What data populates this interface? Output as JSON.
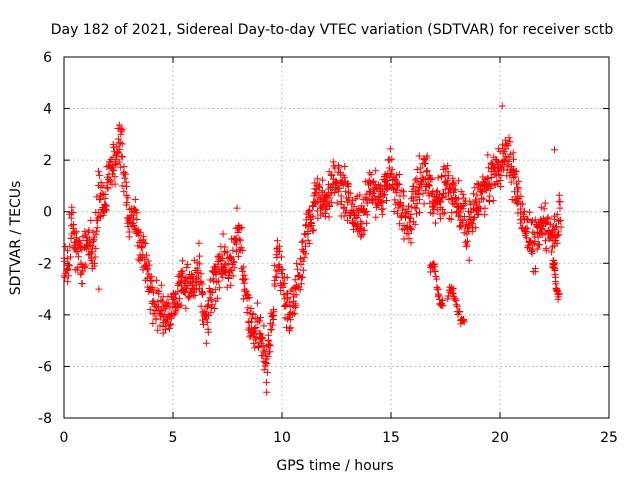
{
  "chart_data": {
    "type": "scatter",
    "title": "Day 182 of 2021, Sidereal Day-to-day VTEC variation (SDTVAR) for receiver sctb",
    "xlabel": "GPS time / hours",
    "ylabel": "SDTVAR / TECUs",
    "xlim": [
      0,
      25
    ],
    "ylim": [
      -8,
      6
    ],
    "xticks": [
      "0",
      "5",
      "10",
      "15",
      "20",
      "25"
    ],
    "yticks": [
      "-8",
      "-6",
      "-4",
      "-2",
      "0",
      "2",
      "4",
      "6"
    ],
    "grid": true,
    "marker": "plus",
    "series_color": "#ff0000",
    "trend": [
      {
        "x": 0.0,
        "y": -1.8
      },
      {
        "x": 0.2,
        "y": -2.5
      },
      {
        "x": 0.35,
        "y": -0.3
      },
      {
        "x": 0.5,
        "y": -1.2
      },
      {
        "x": 0.8,
        "y": -2.0
      },
      {
        "x": 1.1,
        "y": -1.2
      },
      {
        "x": 1.4,
        "y": -1.6
      },
      {
        "x": 1.6,
        "y": 0.8
      },
      {
        "x": 1.9,
        "y": 0.3
      },
      {
        "x": 2.1,
        "y": 1.5
      },
      {
        "x": 2.4,
        "y": 2.2
      },
      {
        "x": 2.6,
        "y": 2.8
      },
      {
        "x": 2.8,
        "y": 1.2
      },
      {
        "x": 3.0,
        "y": -0.5
      },
      {
        "x": 3.2,
        "y": 0.0
      },
      {
        "x": 3.5,
        "y": -1.2
      },
      {
        "x": 3.8,
        "y": -2.3
      },
      {
        "x": 4.2,
        "y": -3.5
      },
      {
        "x": 4.6,
        "y": -4.0
      },
      {
        "x": 5.0,
        "y": -3.8
      },
      {
        "x": 5.4,
        "y": -2.5
      },
      {
        "x": 5.8,
        "y": -3.0
      },
      {
        "x": 6.2,
        "y": -2.4
      },
      {
        "x": 6.5,
        "y": -4.6
      },
      {
        "x": 6.8,
        "y": -3.2
      },
      {
        "x": 7.2,
        "y": -1.8
      },
      {
        "x": 7.6,
        "y": -2.6
      },
      {
        "x": 8.0,
        "y": -0.6
      },
      {
        "x": 8.3,
        "y": -2.8
      },
      {
        "x": 8.6,
        "y": -4.4
      },
      {
        "x": 9.0,
        "y": -4.6
      },
      {
        "x": 9.3,
        "y": -6.0
      },
      {
        "x": 9.6,
        "y": -3.6
      },
      {
        "x": 9.8,
        "y": -1.6
      },
      {
        "x": 10.1,
        "y": -3.0
      },
      {
        "x": 10.4,
        "y": -4.0
      },
      {
        "x": 10.8,
        "y": -2.5
      },
      {
        "x": 11.2,
        "y": -0.5
      },
      {
        "x": 11.6,
        "y": 0.6
      },
      {
        "x": 12.0,
        "y": 0.2
      },
      {
        "x": 12.4,
        "y": 1.4
      },
      {
        "x": 12.8,
        "y": 0.8
      },
      {
        "x": 13.2,
        "y": 0.2
      },
      {
        "x": 13.6,
        "y": -0.5
      },
      {
        "x": 14.0,
        "y": 1.0
      },
      {
        "x": 14.5,
        "y": 0.5
      },
      {
        "x": 15.0,
        "y": 1.6
      },
      {
        "x": 15.4,
        "y": 0.4
      },
      {
        "x": 15.8,
        "y": -0.6
      },
      {
        "x": 16.2,
        "y": 0.8
      },
      {
        "x": 16.6,
        "y": 1.5
      },
      {
        "x": 17.0,
        "y": 0.2
      },
      {
        "x": 17.5,
        "y": 1.0
      },
      {
        "x": 18.0,
        "y": 0.6
      },
      {
        "x": 18.5,
        "y": -0.8
      },
      {
        "x": 19.0,
        "y": 0.5
      },
      {
        "x": 19.5,
        "y": 1.2
      },
      {
        "x": 20.0,
        "y": 1.8
      },
      {
        "x": 20.4,
        "y": 2.2
      },
      {
        "x": 20.8,
        "y": 0.5
      },
      {
        "x": 21.2,
        "y": -0.6
      },
      {
        "x": 21.6,
        "y": -1.4
      },
      {
        "x": 22.0,
        "y": -0.4
      },
      {
        "x": 22.4,
        "y": -0.8
      },
      {
        "x": 22.8,
        "y": -0.2
      }
    ],
    "excursions": [
      {
        "x_start": 16.8,
        "x_end": 17.4,
        "y_start": -2.2,
        "y_end": -3.4
      },
      {
        "x_start": 17.6,
        "x_end": 18.4,
        "y_start": -3.2,
        "y_end": -4.0
      },
      {
        "x_start": 22.4,
        "x_end": 22.7,
        "y_start": -2.2,
        "y_end": -3.0
      }
    ],
    "outliers": [
      {
        "x": 20.1,
        "y": 4.1
      },
      {
        "x": 9.3,
        "y": -7.0
      },
      {
        "x": 1.6,
        "y": -3.0
      },
      {
        "x": 18.3,
        "y": -4.2
      },
      {
        "x": 22.5,
        "y": 2.4
      }
    ]
  }
}
